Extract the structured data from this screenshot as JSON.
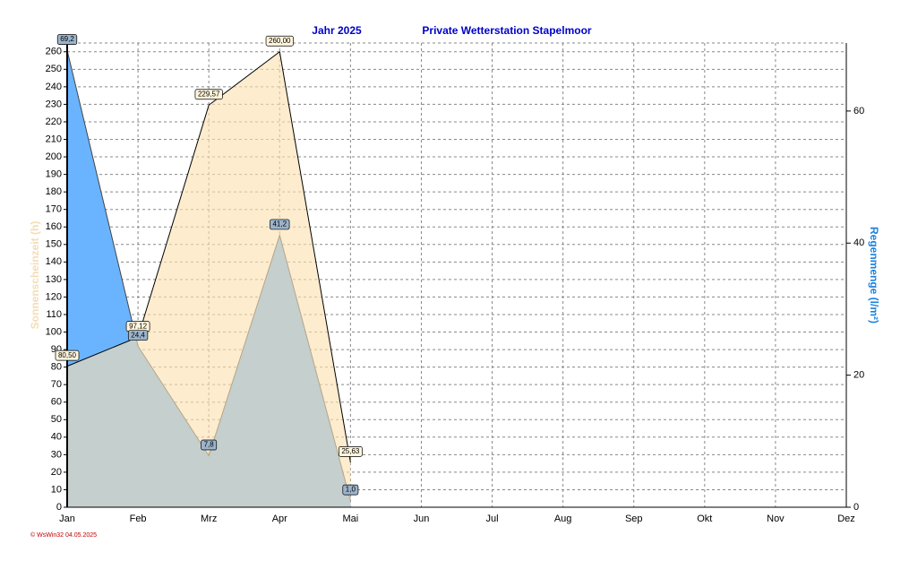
{
  "chart_data": {
    "type": "area",
    "subtitle": "Jahr  2025",
    "title": "Private Wetterstation Stapelmoor",
    "ylabel": "Sonnenscheinzeit  (h)",
    "y2label": "Regenmenge  (l/m²)",
    "footer": "© WsWin32  04.05.2025",
    "categories": [
      "Jan",
      "Feb",
      "Mrz",
      "Apr",
      "Mai",
      "Jun",
      "Jul",
      "Aug",
      "Sep",
      "Okt",
      "Nov",
      "Dez"
    ],
    "series": [
      {
        "color": "#fbe0b0",
        "values": [
          80.5,
          97.12,
          229.57,
          260,
          25.63,
          null,
          null,
          null,
          null,
          null,
          null,
          null
        ],
        "value_labels": [
          "80,50",
          "97,12",
          "229,57",
          "260,00",
          "25,63",
          null,
          null,
          null,
          null,
          null,
          null,
          null
        ]
      },
      {
        "color": "#6ab4ff",
        "axis": "y2",
        "values": [
          69.2,
          24.4,
          7.8,
          41.2,
          1.0,
          null,
          null,
          null,
          null,
          null,
          null,
          null
        ],
        "value_labels": [
          "69,2",
          "24,4",
          "7,8",
          "41,2",
          "1,0",
          null,
          null,
          null,
          null,
          null,
          null,
          null
        ]
      }
    ],
    "ylim": [
      0,
      265
    ],
    "yticks": [
      0,
      10,
      20,
      30,
      40,
      50,
      60,
      70,
      80,
      90,
      100,
      110,
      120,
      130,
      140,
      150,
      160,
      170,
      180,
      190,
      200,
      210,
      220,
      230,
      240,
      250,
      260
    ],
    "y2lim": [
      0,
      70.3
    ],
    "y2ticks": [
      0,
      20,
      40,
      60
    ],
    "grid": true
  }
}
